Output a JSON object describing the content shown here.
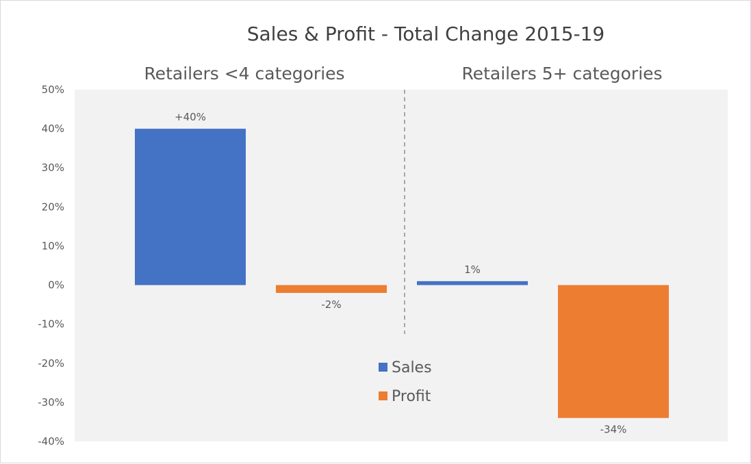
{
  "chart_data": {
    "type": "bar",
    "title": "Sales & Profit - Total Change 2015-19",
    "groups": [
      "Retailers <4 categories",
      "Retailers 5+ categories"
    ],
    "series": [
      {
        "name": "Sales",
        "color": "#4472C4",
        "values": [
          40,
          1
        ],
        "labels": [
          "+40%",
          "1%"
        ]
      },
      {
        "name": "Profit",
        "color": "#ED7D31",
        "values": [
          -2,
          -34
        ],
        "labels": [
          "-2%",
          "-34%"
        ]
      }
    ],
    "ylim": [
      -40,
      50
    ],
    "yticks": [
      50,
      40,
      30,
      20,
      10,
      0,
      -10,
      -20,
      -30,
      -40
    ],
    "ytick_labels": [
      "50%",
      "40%",
      "30%",
      "20%",
      "10%",
      "0%",
      "-10%",
      "-20%",
      "-30%",
      "-40%"
    ],
    "plot_background": "#F2F2F2",
    "divider": "dashed",
    "legend_position": "center-bottom",
    "grid": false,
    "xlabel": "",
    "ylabel": ""
  }
}
